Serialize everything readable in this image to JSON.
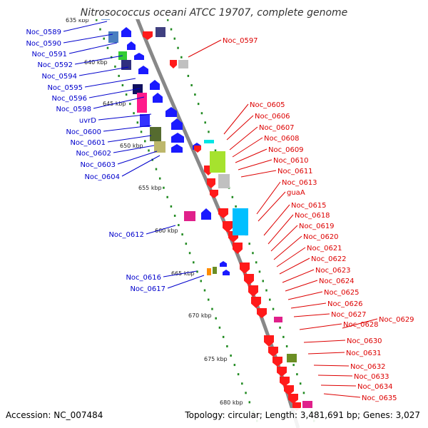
{
  "title": "Nitrosococcus oceani ATCC 19707, complete genome",
  "footer": {
    "accession": "Accession: NC_007484",
    "topology": "Topology: circular; Length: 3,481,691 bp; Genes: 3,027"
  },
  "kbp_labels": [
    "635 kbp",
    "640 kbp",
    "645 kbp",
    "650 kbp",
    "655 kbp",
    "660 kbp",
    "665 kbp",
    "670 kbp",
    "675 kbp",
    "680 kbp"
  ],
  "left_labels": [
    "Noc_0589",
    "Noc_0590",
    "Noc_0591",
    "Noc_0592",
    "Noc_0594",
    "Noc_0595",
    "Noc_0596",
    "Noc_0598",
    "uvrD",
    "Noc_0600",
    "Noc_0601",
    "Noc_0602",
    "Noc_0603",
    "Noc_0604",
    "Noc_0612",
    "Noc_0616",
    "Noc_0617"
  ],
  "right_labels": [
    "Noc_0597",
    "Noc_0605",
    "Noc_0606",
    "Noc_0607",
    "Noc_0608",
    "Noc_0609",
    "Noc_0610",
    "Noc_0611",
    "Noc_0613",
    "guaA",
    "Noc_0615",
    "Noc_0618",
    "Noc_0619",
    "Noc_0620",
    "Noc_0621",
    "Noc_0622",
    "Noc_0623",
    "Noc_0624",
    "Noc_0625",
    "Noc_0626",
    "Noc_0627",
    "Noc_0628",
    "Noc_0629",
    "Noc_0630",
    "Noc_0631",
    "Noc_0632",
    "Noc_0633",
    "Noc_0634",
    "Noc_0635"
  ],
  "colors": {
    "forward_strand": "#1a1aff",
    "reverse_strand": "#ff1a1a",
    "backbone": "#888888",
    "ticks": "#228b22",
    "label_forward": "#0000cc",
    "label_reverse": "#dd0000"
  }
}
